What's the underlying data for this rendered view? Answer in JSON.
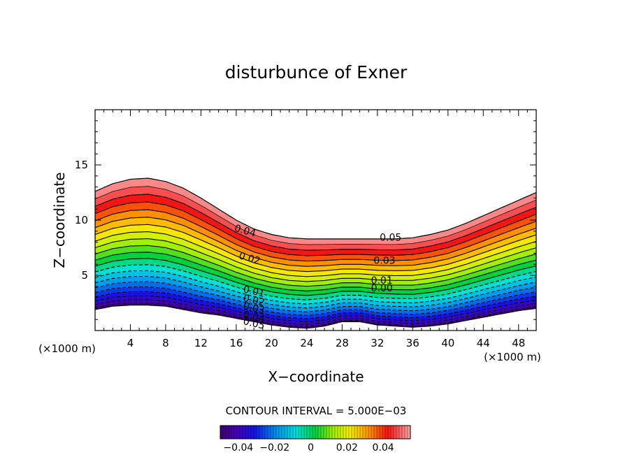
{
  "chart_data": {
    "type": "contour",
    "title": "disturbunce of Exner",
    "xlabel": "X−coordinate",
    "ylabel": "Z−coordinate",
    "x_unit": "(×1000 m)",
    "z_unit": "(×1000 m)",
    "xlim": [
      0,
      50
    ],
    "ylim": [
      0,
      20
    ],
    "x_ticks": [
      4,
      8,
      12,
      16,
      20,
      24,
      28,
      32,
      36,
      40,
      44,
      48
    ],
    "y_ticks": [
      5,
      10,
      15
    ],
    "x_tick_labels": [
      "4",
      "8",
      "12",
      "16",
      "20",
      "24",
      "28",
      "32",
      "36",
      "40",
      "44",
      "48"
    ],
    "y_tick_labels": [
      "5",
      "10",
      "15"
    ],
    "contour_interval_text": "CONTOUR INTERVAL = 5.000E−03",
    "contour_interval": 0.005,
    "value_range": [
      -0.05,
      0.055
    ],
    "negative_contours_dashed": true,
    "top_boundary": [
      {
        "x": 0,
        "z": 12.6
      },
      {
        "x": 2,
        "z": 13.3
      },
      {
        "x": 4,
        "z": 13.7
      },
      {
        "x": 6,
        "z": 13.8
      },
      {
        "x": 8,
        "z": 13.5
      },
      {
        "x": 10,
        "z": 12.9
      },
      {
        "x": 12,
        "z": 12.0
      },
      {
        "x": 14,
        "z": 11.0
      },
      {
        "x": 16,
        "z": 10.0
      },
      {
        "x": 18,
        "z": 9.2
      },
      {
        "x": 20,
        "z": 8.7
      },
      {
        "x": 22,
        "z": 8.4
      },
      {
        "x": 24,
        "z": 8.3
      },
      {
        "x": 26,
        "z": 8.3
      },
      {
        "x": 28,
        "z": 8.3
      },
      {
        "x": 30,
        "z": 8.3
      },
      {
        "x": 32,
        "z": 8.3
      },
      {
        "x": 34,
        "z": 8.3
      },
      {
        "x": 36,
        "z": 8.4
      },
      {
        "x": 38,
        "z": 8.7
      },
      {
        "x": 40,
        "z": 9.1
      },
      {
        "x": 42,
        "z": 9.7
      },
      {
        "x": 44,
        "z": 10.4
      },
      {
        "x": 46,
        "z": 11.1
      },
      {
        "x": 48,
        "z": 11.8
      },
      {
        "x": 50,
        "z": 12.5
      }
    ],
    "bottom_boundary": [
      {
        "x": 0,
        "z": 1.9
      },
      {
        "x": 2,
        "z": 2.2
      },
      {
        "x": 4,
        "z": 2.3
      },
      {
        "x": 6,
        "z": 2.3
      },
      {
        "x": 8,
        "z": 2.2
      },
      {
        "x": 10,
        "z": 1.9
      },
      {
        "x": 12,
        "z": 1.6
      },
      {
        "x": 14,
        "z": 1.4
      },
      {
        "x": 16,
        "z": 1.1
      },
      {
        "x": 18,
        "z": 0.8
      },
      {
        "x": 20,
        "z": 0.5
      },
      {
        "x": 22,
        "z": 0.3
      },
      {
        "x": 24,
        "z": 0.2
      },
      {
        "x": 26,
        "z": 0.4
      },
      {
        "x": 28,
        "z": 0.8
      },
      {
        "x": 30,
        "z": 0.8
      },
      {
        "x": 32,
        "z": 0.5
      },
      {
        "x": 34,
        "z": 0.4
      },
      {
        "x": 36,
        "z": 0.3
      },
      {
        "x": 38,
        "z": 0.4
      },
      {
        "x": 40,
        "z": 0.6
      },
      {
        "x": 42,
        "z": 0.9
      },
      {
        "x": 44,
        "z": 1.2
      },
      {
        "x": 46,
        "z": 1.5
      },
      {
        "x": 48,
        "z": 1.8
      },
      {
        "x": 50,
        "z": 2.0
      }
    ],
    "contour_labels": [
      {
        "text": "0.05",
        "x": 33.5,
        "z": 8.4
      },
      {
        "text": "0.04",
        "x": 17.0,
        "z": 9.0
      },
      {
        "text": "0.03",
        "x": 32.8,
        "z": 6.3
      },
      {
        "text": "0.02",
        "x": 17.5,
        "z": 6.5
      },
      {
        "text": "0.01",
        "x": 32.5,
        "z": 4.5
      },
      {
        "text": "0.00",
        "x": 32.5,
        "z": 3.8
      },
      {
        "text": "0.01",
        "x": 18.0,
        "z": 3.5
      },
      {
        "text": "0.02",
        "x": 18.0,
        "z": 2.7
      },
      {
        "text": "0.03",
        "x": 18.0,
        "z": 2.0
      },
      {
        "text": "0.04",
        "x": 18.0,
        "z": 1.2
      },
      {
        "text": "0.05",
        "x": 18.0,
        "z": 0.6
      }
    ],
    "colorbar": {
      "range": [
        -0.05,
        0.055
      ],
      "tick_values": [
        -0.04,
        -0.02,
        0,
        0.02,
        0.04
      ],
      "tick_labels": [
        "−0.04",
        "−0.02",
        "0",
        "0.02",
        "0.04"
      ]
    }
  }
}
